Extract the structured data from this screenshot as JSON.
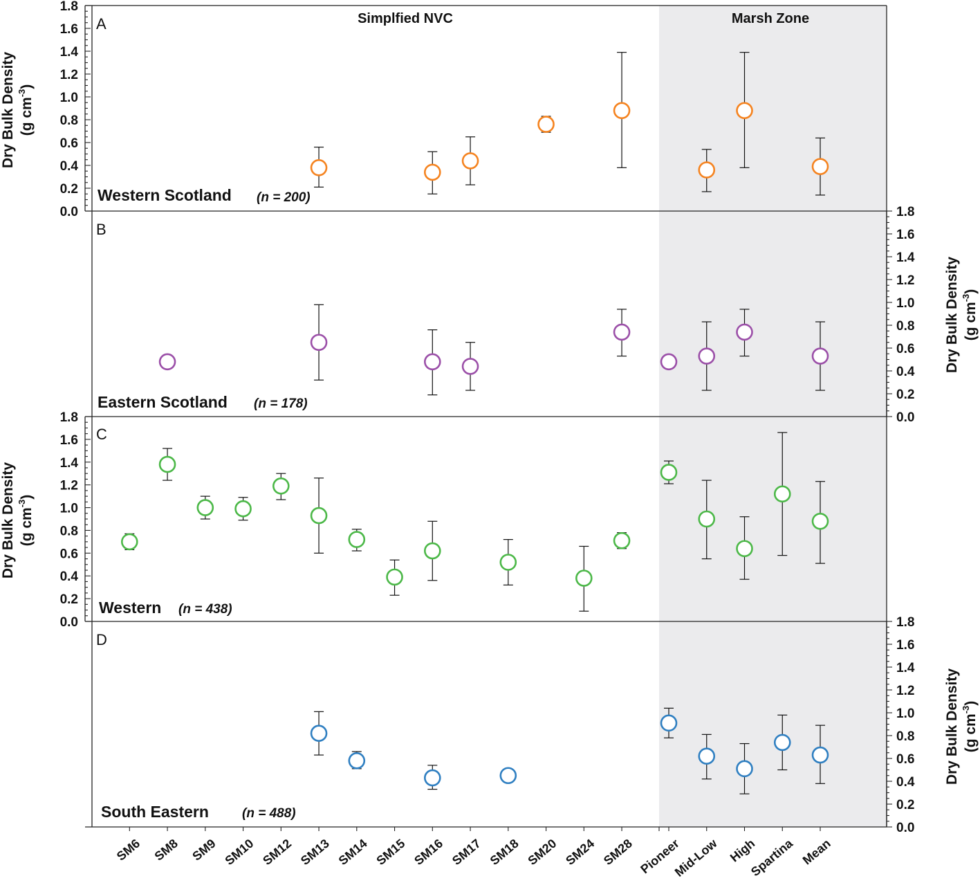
{
  "chart_data": {
    "type": "scatter",
    "section_titles": {
      "nvc": "Simplfied NVC",
      "marsh": "Marsh Zone"
    },
    "y_axis": {
      "title": "Dry Bulk Density",
      "unit_text": "(g cm",
      "unit_exp": "-3",
      "unit_close": ")",
      "ylim": [
        0,
        1.8
      ],
      "ticks": [
        "0.0",
        "0.2",
        "0.4",
        "0.6",
        "0.8",
        "1.0",
        "1.2",
        "1.4",
        "1.6",
        "1.8"
      ]
    },
    "categories": [
      "SM6",
      "SM8",
      "SM9",
      "SM10",
      "SM12",
      "SM13",
      "SM14",
      "SM15",
      "SM16",
      "SM17",
      "SM18",
      "SM20",
      "SM24",
      "SM28",
      "Pioneer",
      "Mid-Low",
      "High",
      "Spartina",
      "Mean"
    ],
    "panels": [
      {
        "letter": "A",
        "region": "Western Scotland",
        "n_label": "(n = 200)",
        "color": "#f5831f",
        "axis_side": "left",
        "points": [
          {
            "cat": "SM13",
            "y": 0.38,
            "lo": 0.21,
            "hi": 0.56
          },
          {
            "cat": "SM16",
            "y": 0.34,
            "lo": 0.15,
            "hi": 0.52
          },
          {
            "cat": "SM17",
            "y": 0.44,
            "lo": 0.23,
            "hi": 0.65
          },
          {
            "cat": "SM20",
            "y": 0.76,
            "lo": 0.69,
            "hi": 0.83
          },
          {
            "cat": "SM28",
            "y": 0.88,
            "lo": 0.38,
            "hi": 1.39
          },
          {
            "cat": "Mid-Low",
            "y": 0.36,
            "lo": 0.17,
            "hi": 0.54
          },
          {
            "cat": "High",
            "y": 0.88,
            "lo": 0.38,
            "hi": 1.39
          },
          {
            "cat": "Mean",
            "y": 0.39,
            "lo": 0.14,
            "hi": 0.64
          }
        ]
      },
      {
        "letter": "B",
        "region": "Eastern Scotland",
        "n_label": "(n = 178)",
        "color": "#9b4fa8",
        "axis_side": "right",
        "points": [
          {
            "cat": "SM8",
            "y": 0.48
          },
          {
            "cat": "SM13",
            "y": 0.65,
            "lo": 0.32,
            "hi": 0.98
          },
          {
            "cat": "SM16",
            "y": 0.48,
            "lo": 0.19,
            "hi": 0.76
          },
          {
            "cat": "SM17",
            "y": 0.44,
            "lo": 0.23,
            "hi": 0.65
          },
          {
            "cat": "SM28",
            "y": 0.74,
            "lo": 0.53,
            "hi": 0.94
          },
          {
            "cat": "Pioneer",
            "y": 0.48
          },
          {
            "cat": "Mid-Low",
            "y": 0.53,
            "lo": 0.23,
            "hi": 0.83
          },
          {
            "cat": "High",
            "y": 0.74,
            "lo": 0.53,
            "hi": 0.94
          },
          {
            "cat": "Mean",
            "y": 0.53,
            "lo": 0.23,
            "hi": 0.83
          }
        ]
      },
      {
        "letter": "C",
        "region": "Western",
        "n_label": "(n = 438)",
        "color": "#4cb848",
        "axis_side": "left",
        "points": [
          {
            "cat": "SM6",
            "y": 0.7,
            "lo": 0.63,
            "hi": 0.77
          },
          {
            "cat": "SM8",
            "y": 1.38,
            "lo": 1.24,
            "hi": 1.52
          },
          {
            "cat": "SM9",
            "y": 1.0,
            "lo": 0.9,
            "hi": 1.1
          },
          {
            "cat": "SM10",
            "y": 0.99,
            "lo": 0.89,
            "hi": 1.09
          },
          {
            "cat": "SM12",
            "y": 1.19,
            "lo": 1.07,
            "hi": 1.3
          },
          {
            "cat": "SM13",
            "y": 0.93,
            "lo": 0.6,
            "hi": 1.26
          },
          {
            "cat": "SM14",
            "y": 0.72,
            "lo": 0.62,
            "hi": 0.81
          },
          {
            "cat": "SM15",
            "y": 0.39,
            "lo": 0.23,
            "hi": 0.54
          },
          {
            "cat": "SM16",
            "y": 0.62,
            "lo": 0.36,
            "hi": 0.88
          },
          {
            "cat": "SM18",
            "y": 0.52,
            "lo": 0.32,
            "hi": 0.72
          },
          {
            "cat": "SM24",
            "y": 0.38,
            "lo": 0.09,
            "hi": 0.66
          },
          {
            "cat": "SM28",
            "y": 0.71,
            "lo": 0.64,
            "hi": 0.78
          },
          {
            "cat": "Pioneer",
            "y": 1.31,
            "lo": 1.21,
            "hi": 1.41
          },
          {
            "cat": "Mid-Low",
            "y": 0.9,
            "lo": 0.55,
            "hi": 1.24
          },
          {
            "cat": "High",
            "y": 0.64,
            "lo": 0.37,
            "hi": 0.92
          },
          {
            "cat": "Spartina",
            "y": 1.12,
            "lo": 0.58,
            "hi": 1.66
          },
          {
            "cat": "Mean",
            "y": 0.88,
            "lo": 0.51,
            "hi": 1.23
          }
        ]
      },
      {
        "letter": "D",
        "region": "South Eastern",
        "n_label": "(n = 488)",
        "color": "#2f7fc1",
        "axis_side": "right",
        "points": [
          {
            "cat": "SM13",
            "y": 0.82,
            "lo": 0.63,
            "hi": 1.01
          },
          {
            "cat": "SM14",
            "y": 0.58,
            "lo": 0.51,
            "hi": 0.66
          },
          {
            "cat": "SM16",
            "y": 0.43,
            "lo": 0.33,
            "hi": 0.54
          },
          {
            "cat": "SM18",
            "y": 0.45
          },
          {
            "cat": "Pioneer",
            "y": 0.91,
            "lo": 0.78,
            "hi": 1.04
          },
          {
            "cat": "Mid-Low",
            "y": 0.62,
            "lo": 0.42,
            "hi": 0.81
          },
          {
            "cat": "High",
            "y": 0.51,
            "lo": 0.29,
            "hi": 0.73
          },
          {
            "cat": "Spartina",
            "y": 0.74,
            "lo": 0.5,
            "hi": 0.98
          },
          {
            "cat": "Mean",
            "y": 0.63,
            "lo": 0.38,
            "hi": 0.89
          }
        ]
      }
    ],
    "marsh_zone_shading": "#ebebed"
  }
}
